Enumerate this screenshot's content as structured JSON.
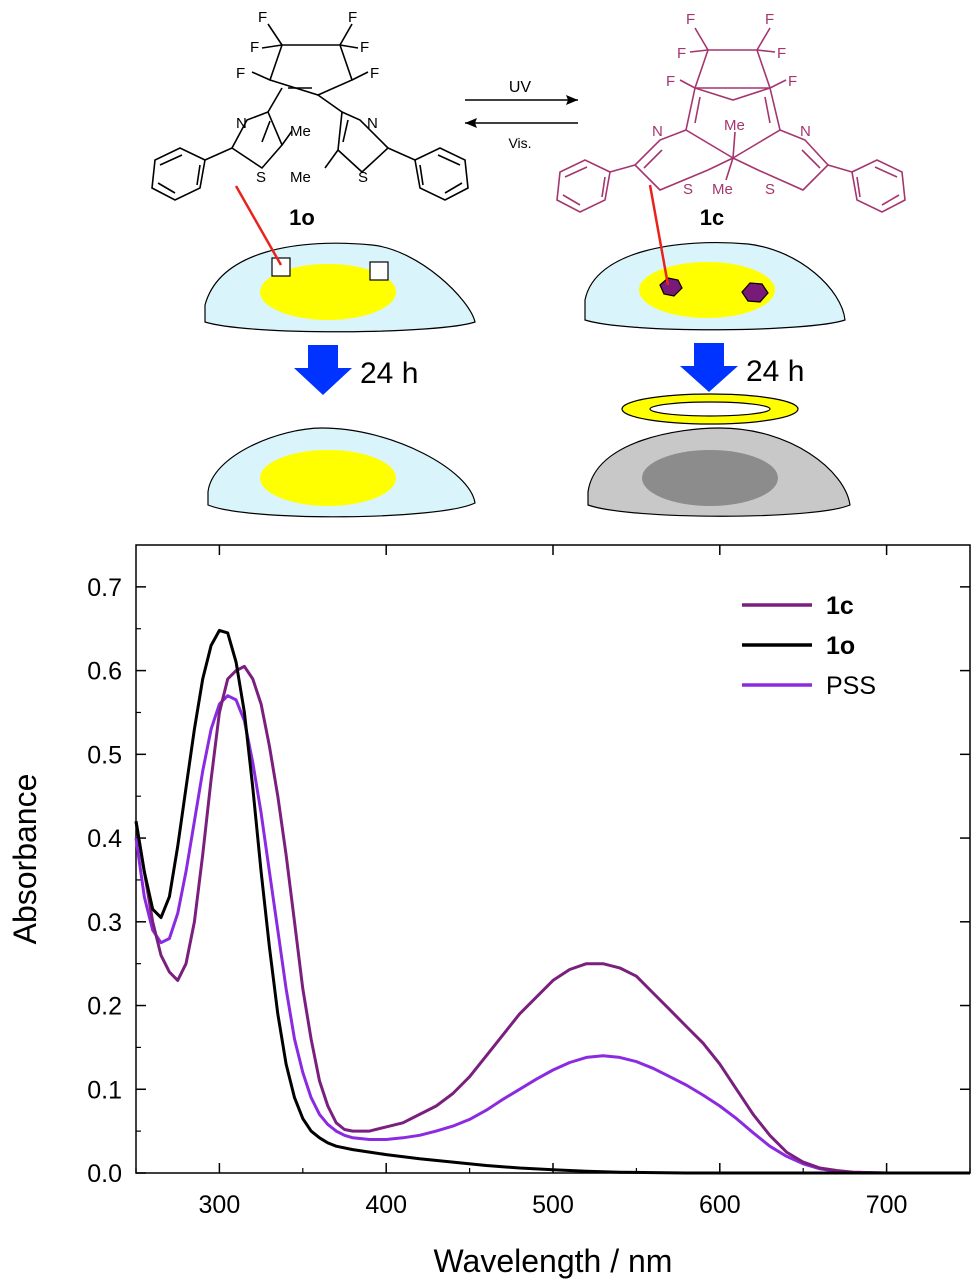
{
  "scheme": {
    "open_label": "1o",
    "closed_label": "1c",
    "uv_label": "UV",
    "vis_label": "Vis.",
    "time_left": "24 h",
    "time_right": "24 h",
    "atoms": {
      "fluorine": "F",
      "nitrogen": "N",
      "sulfur": "S",
      "methyl": "Me"
    },
    "colors": {
      "open_structure": "#000000",
      "closed_structure": "#a5356f",
      "cytoplasm": "#d9f5fb",
      "nucleus": "#ffff00",
      "dead_cell": "#c8c8c8",
      "dead_nucleus": "#8c8c8c",
      "arrow": "#0033ff",
      "pointer": "#e8231e",
      "closed_marker": "#7a1a78"
    }
  },
  "chart_data": {
    "type": "line",
    "xlabel": "Wavelength / nm",
    "ylabel": "Absorbance",
    "xlim": [
      250,
      750
    ],
    "ylim": [
      0,
      0.75
    ],
    "xticks": [
      "300",
      "400",
      "500",
      "600",
      "700"
    ],
    "xtick_values": [
      300,
      400,
      500,
      600,
      700
    ],
    "yticks": [
      "0.0",
      "0.1",
      "0.2",
      "0.3",
      "0.4",
      "0.5",
      "0.6",
      "0.7"
    ],
    "ytick_values": [
      0,
      0.1,
      0.2,
      0.3,
      0.4,
      0.5,
      0.6,
      0.7
    ],
    "grid": false,
    "legend_position": "top-right",
    "series": [
      {
        "name": "1c",
        "bold": true,
        "color": "#7b1f7f",
        "x": [
          250,
          255,
          260,
          265,
          270,
          275,
          280,
          285,
          290,
          295,
          300,
          305,
          310,
          315,
          320,
          325,
          330,
          335,
          340,
          345,
          350,
          355,
          360,
          365,
          370,
          375,
          380,
          390,
          400,
          410,
          420,
          430,
          440,
          450,
          460,
          470,
          480,
          490,
          500,
          510,
          520,
          530,
          540,
          550,
          560,
          570,
          580,
          590,
          600,
          610,
          620,
          630,
          640,
          650,
          660,
          670,
          680,
          700,
          720,
          750
        ],
        "y": [
          0.42,
          0.36,
          0.3,
          0.26,
          0.24,
          0.23,
          0.25,
          0.3,
          0.38,
          0.47,
          0.55,
          0.59,
          0.6,
          0.605,
          0.59,
          0.56,
          0.51,
          0.45,
          0.38,
          0.3,
          0.22,
          0.16,
          0.11,
          0.08,
          0.06,
          0.052,
          0.05,
          0.05,
          0.055,
          0.06,
          0.07,
          0.08,
          0.095,
          0.115,
          0.14,
          0.165,
          0.19,
          0.21,
          0.23,
          0.243,
          0.25,
          0.25,
          0.245,
          0.235,
          0.215,
          0.195,
          0.175,
          0.155,
          0.13,
          0.1,
          0.07,
          0.045,
          0.025,
          0.013,
          0.006,
          0.003,
          0.001,
          0,
          0,
          0
        ]
      },
      {
        "name": "1o",
        "bold": true,
        "color": "#000000",
        "x": [
          250,
          255,
          260,
          265,
          270,
          275,
          280,
          285,
          290,
          295,
          300,
          305,
          310,
          315,
          320,
          325,
          330,
          335,
          340,
          345,
          350,
          355,
          360,
          365,
          370,
          380,
          390,
          400,
          420,
          440,
          460,
          480,
          500,
          520,
          540,
          560,
          580,
          600,
          650,
          700,
          750
        ],
        "y": [
          0.42,
          0.36,
          0.315,
          0.305,
          0.33,
          0.39,
          0.46,
          0.53,
          0.59,
          0.63,
          0.648,
          0.645,
          0.61,
          0.55,
          0.46,
          0.36,
          0.27,
          0.19,
          0.13,
          0.09,
          0.065,
          0.05,
          0.042,
          0.036,
          0.032,
          0.028,
          0.025,
          0.022,
          0.017,
          0.013,
          0.009,
          0.006,
          0.004,
          0.002,
          0.001,
          0.0005,
          0,
          0,
          0,
          0,
          0
        ]
      },
      {
        "name": "PSS",
        "bold": false,
        "color": "#8a2be2",
        "x": [
          250,
          255,
          260,
          265,
          270,
          275,
          280,
          285,
          290,
          295,
          300,
          305,
          310,
          315,
          320,
          325,
          330,
          335,
          340,
          345,
          350,
          355,
          360,
          365,
          370,
          375,
          380,
          390,
          400,
          410,
          420,
          430,
          440,
          450,
          460,
          470,
          480,
          490,
          500,
          510,
          520,
          530,
          540,
          550,
          560,
          570,
          580,
          590,
          600,
          610,
          620,
          630,
          640,
          650,
          660,
          670,
          680,
          700,
          720,
          750
        ],
        "y": [
          0.4,
          0.33,
          0.29,
          0.275,
          0.28,
          0.31,
          0.36,
          0.42,
          0.48,
          0.53,
          0.56,
          0.57,
          0.565,
          0.54,
          0.49,
          0.43,
          0.36,
          0.29,
          0.22,
          0.16,
          0.12,
          0.09,
          0.07,
          0.058,
          0.05,
          0.045,
          0.042,
          0.04,
          0.04,
          0.042,
          0.045,
          0.05,
          0.056,
          0.064,
          0.075,
          0.088,
          0.1,
          0.112,
          0.123,
          0.132,
          0.138,
          0.14,
          0.138,
          0.133,
          0.125,
          0.115,
          0.105,
          0.093,
          0.08,
          0.065,
          0.048,
          0.032,
          0.02,
          0.011,
          0.005,
          0.002,
          0.001,
          0,
          0,
          0
        ]
      }
    ]
  }
}
